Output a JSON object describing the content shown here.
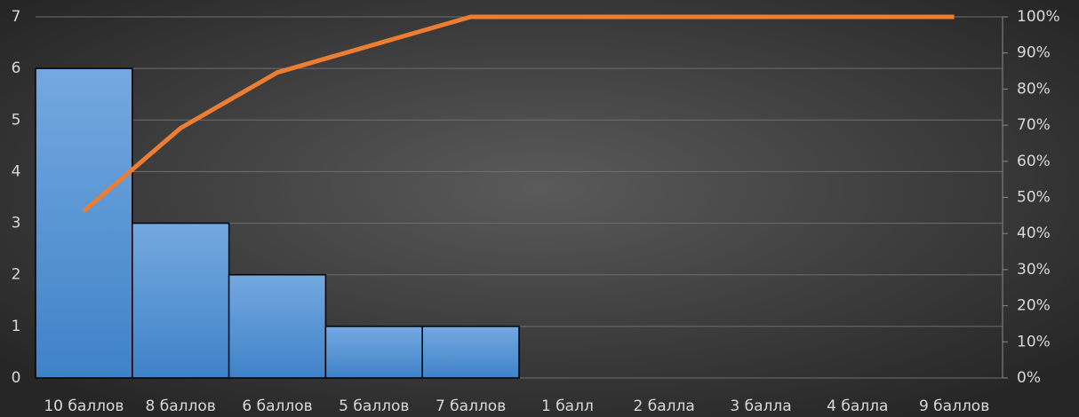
{
  "chart_data": {
    "type": "bar",
    "categories": [
      "10 баллов",
      "8 баллов",
      "6 баллов",
      "5 баллов",
      "7 баллов",
      "1 балл",
      "2 балла",
      "3 балла",
      "4 балла",
      "9 баллов"
    ],
    "series": [
      {
        "type": "bar",
        "color": "#4a8fd6",
        "values": [
          6,
          3,
          2,
          1,
          1,
          0,
          0,
          0,
          0,
          0
        ]
      },
      {
        "type": "line",
        "color": "#ed7d31",
        "axis": "y2",
        "values": [
          46.2,
          69.2,
          84.6,
          92.3,
          100,
          100,
          100,
          100,
          100,
          100
        ]
      }
    ],
    "ylim": [
      0,
      7
    ],
    "yticks": [
      0,
      1,
      2,
      3,
      4,
      5,
      6,
      7
    ],
    "y2lim": [
      0,
      100
    ],
    "y2ticks": [
      {
        "value": 0,
        "label": "0%"
      },
      {
        "value": 10,
        "label": "10%"
      },
      {
        "value": 20,
        "label": "20%"
      },
      {
        "value": 30,
        "label": "30%"
      },
      {
        "value": 40,
        "label": "40%"
      },
      {
        "value": 50,
        "label": "50%"
      },
      {
        "value": 60,
        "label": "60%"
      },
      {
        "value": 70,
        "label": "70%"
      },
      {
        "value": 80,
        "label": "80%"
      },
      {
        "value": 90,
        "label": "90%"
      },
      {
        "value": 100,
        "label": "100%"
      }
    ],
    "grid": true
  }
}
